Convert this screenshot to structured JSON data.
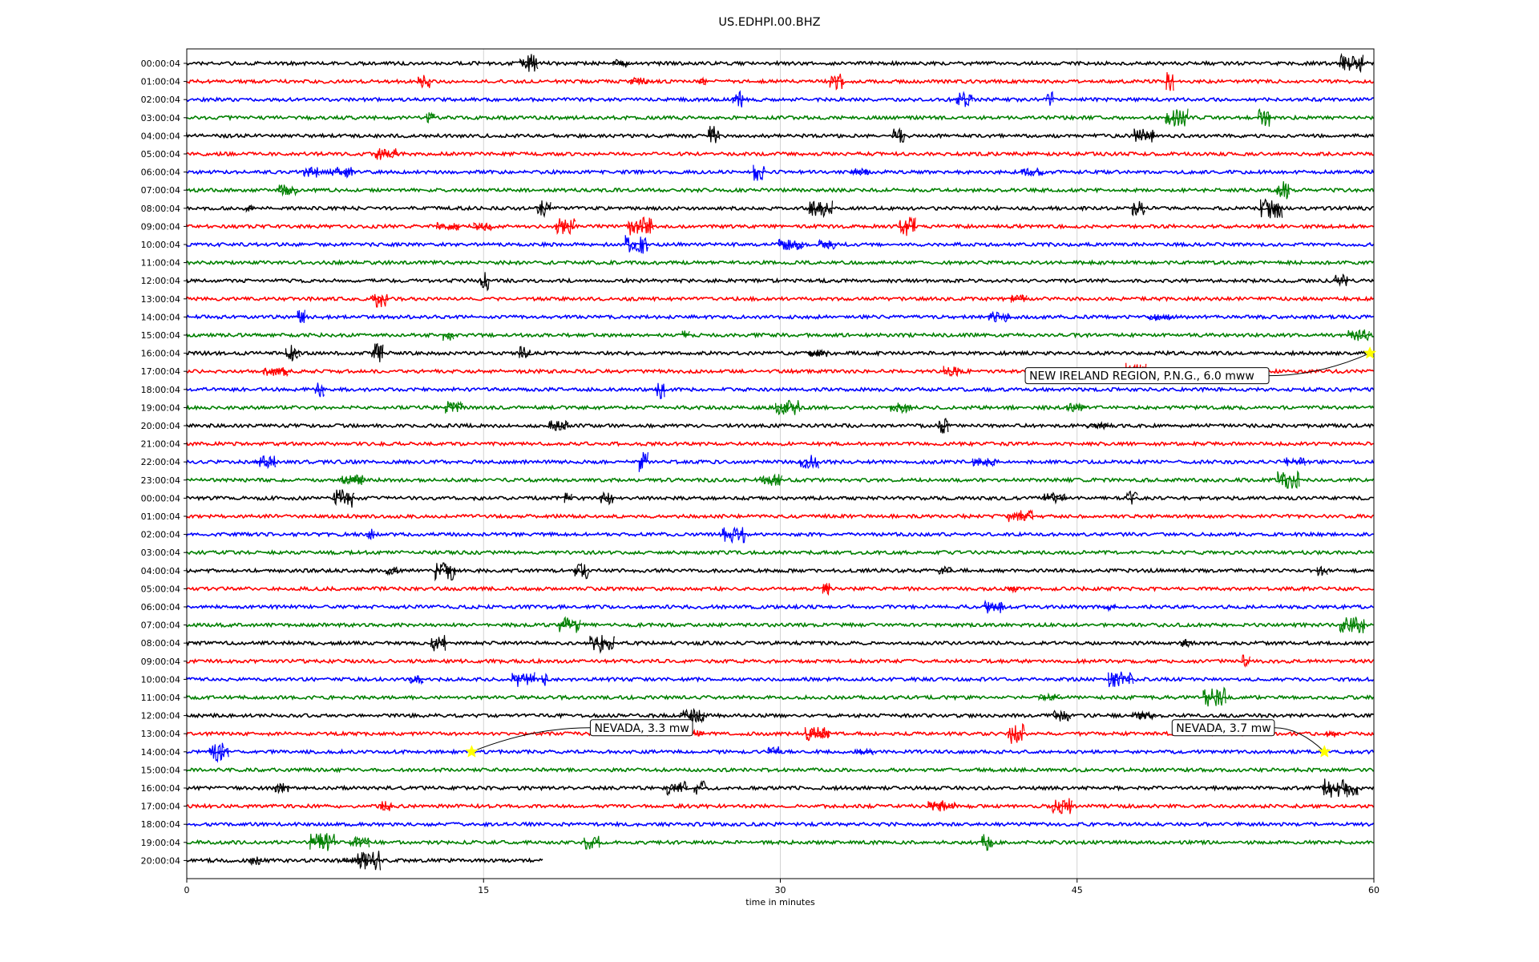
{
  "title": "US.EDHPI.00.BHZ",
  "chart_data": {
    "type": "line",
    "title": "US.EDHPI.00.BHZ",
    "xlabel": "time in minutes",
    "xlim": [
      0,
      60
    ],
    "xticks": [
      0,
      15,
      30,
      45,
      60
    ],
    "grid": "vertical lines at each x tick",
    "color_cycle": [
      "#000000",
      "#ff0000",
      "#0000ff",
      "#008000"
    ],
    "rows": [
      {
        "label": "00:00:04",
        "end_minute": 60
      },
      {
        "label": "01:00:04",
        "end_minute": 60
      },
      {
        "label": "02:00:04",
        "end_minute": 60
      },
      {
        "label": "03:00:04",
        "end_minute": 60
      },
      {
        "label": "04:00:04",
        "end_minute": 60
      },
      {
        "label": "05:00:04",
        "end_minute": 60
      },
      {
        "label": "06:00:04",
        "end_minute": 60
      },
      {
        "label": "07:00:04",
        "end_minute": 60
      },
      {
        "label": "08:00:04",
        "end_minute": 60
      },
      {
        "label": "09:00:04",
        "end_minute": 60
      },
      {
        "label": "10:00:04",
        "end_minute": 60
      },
      {
        "label": "11:00:04",
        "end_minute": 60
      },
      {
        "label": "12:00:04",
        "end_minute": 60
      },
      {
        "label": "13:00:04",
        "end_minute": 60
      },
      {
        "label": "14:00:04",
        "end_minute": 60
      },
      {
        "label": "15:00:04",
        "end_minute": 60
      },
      {
        "label": "16:00:04",
        "end_minute": 60
      },
      {
        "label": "17:00:04",
        "end_minute": 60
      },
      {
        "label": "18:00:04",
        "end_minute": 60
      },
      {
        "label": "19:00:04",
        "end_minute": 60
      },
      {
        "label": "20:00:04",
        "end_minute": 60
      },
      {
        "label": "21:00:04",
        "end_minute": 60
      },
      {
        "label": "22:00:04",
        "end_minute": 60
      },
      {
        "label": "23:00:04",
        "end_minute": 60
      },
      {
        "label": "00:00:04",
        "end_minute": 60
      },
      {
        "label": "01:00:04",
        "end_minute": 60
      },
      {
        "label": "02:00:04",
        "end_minute": 60
      },
      {
        "label": "03:00:04",
        "end_minute": 60
      },
      {
        "label": "04:00:04",
        "end_minute": 60
      },
      {
        "label": "05:00:04",
        "end_minute": 60
      },
      {
        "label": "06:00:04",
        "end_minute": 60
      },
      {
        "label": "07:00:04",
        "end_minute": 60
      },
      {
        "label": "08:00:04",
        "end_minute": 60
      },
      {
        "label": "09:00:04",
        "end_minute": 60
      },
      {
        "label": "10:00:04",
        "end_minute": 60
      },
      {
        "label": "11:00:04",
        "end_minute": 60
      },
      {
        "label": "12:00:04",
        "end_minute": 60
      },
      {
        "label": "13:00:04",
        "end_minute": 60
      },
      {
        "label": "14:00:04",
        "end_minute": 60
      },
      {
        "label": "15:00:04",
        "end_minute": 60
      },
      {
        "label": "16:00:04",
        "end_minute": 60
      },
      {
        "label": "17:00:04",
        "end_minute": 60
      },
      {
        "label": "18:00:04",
        "end_minute": 60
      },
      {
        "label": "19:00:04",
        "end_minute": 60
      },
      {
        "label": "20:00:04",
        "end_minute": 18
      }
    ],
    "events": [
      {
        "text": "NEW IRELAND REGION, P.N.G., 6.0 mww",
        "row": 16,
        "minute": 59.8
      },
      {
        "text": "NEVADA, 3.3 mw",
        "row": 38,
        "minute": 14.4
      },
      {
        "text": "NEVADA, 3.7 mw",
        "row": 38,
        "minute": 57.5
      }
    ],
    "event_marker_color": "#ffff00"
  }
}
